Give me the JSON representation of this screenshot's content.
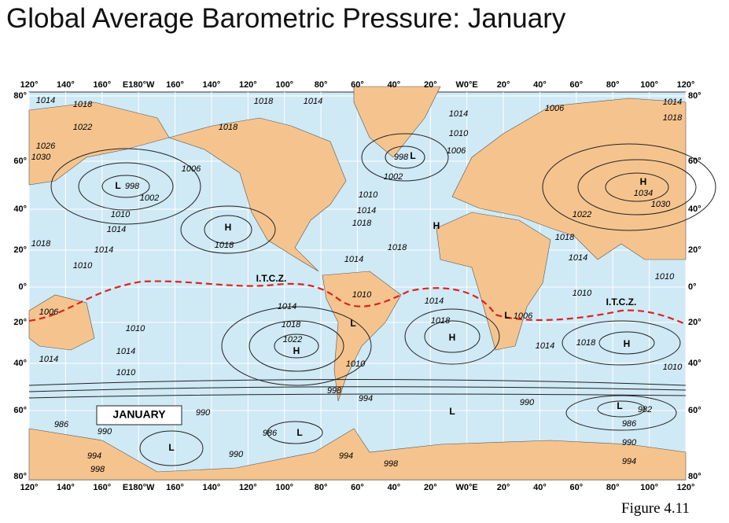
{
  "title": "Global Average Barometric Pressure: January",
  "figure_label": "Figure 4.11",
  "map": {
    "longitude_labels": [
      "120°",
      "140°",
      "160°",
      "E180°W",
      "160°",
      "140°",
      "120°",
      "100°",
      "80°",
      "60°",
      "40°",
      "20°",
      "W0°E",
      "20°",
      "40°",
      "60°",
      "80°",
      "100°",
      "120°"
    ],
    "latitude_labels": [
      "80°",
      "60°",
      "40°",
      "20°",
      "0°",
      "20°",
      "40°",
      "60°",
      "80°"
    ],
    "month_label": "JANUARY",
    "annotations": [
      "1014",
      "1018",
      "1022",
      "1026",
      "1030",
      "L",
      "998",
      "1002",
      "1006",
      "1010",
      "1014",
      "1018",
      "1014",
      "1010",
      "1018",
      "1014",
      "1018",
      "H",
      "1018",
      "1010",
      "1014",
      "1018",
      "1018",
      "1014",
      "998",
      "L",
      "1002",
      "1014",
      "1010",
      "1006",
      "1006",
      "1014",
      "1018",
      "H",
      "1034",
      "1030",
      "1022",
      "1018",
      "1014",
      "1010",
      "H",
      "1010",
      "I.T.C.Z.",
      "I.T.C.Z.",
      "1010",
      "1006",
      "1010",
      "1014",
      "1014",
      "1010",
      "1014",
      "1018",
      "1022",
      "H",
      "L",
      "1010",
      "1014",
      "1018",
      "H",
      "L",
      "1006",
      "1014",
      "1018",
      "H",
      "1010",
      "998",
      "994",
      "990",
      "L",
      "982",
      "986",
      "990",
      "994",
      "990",
      "L",
      "986",
      "990",
      "986",
      "L",
      "L",
      "994",
      "998",
      "990",
      "994",
      "998"
    ]
  }
}
